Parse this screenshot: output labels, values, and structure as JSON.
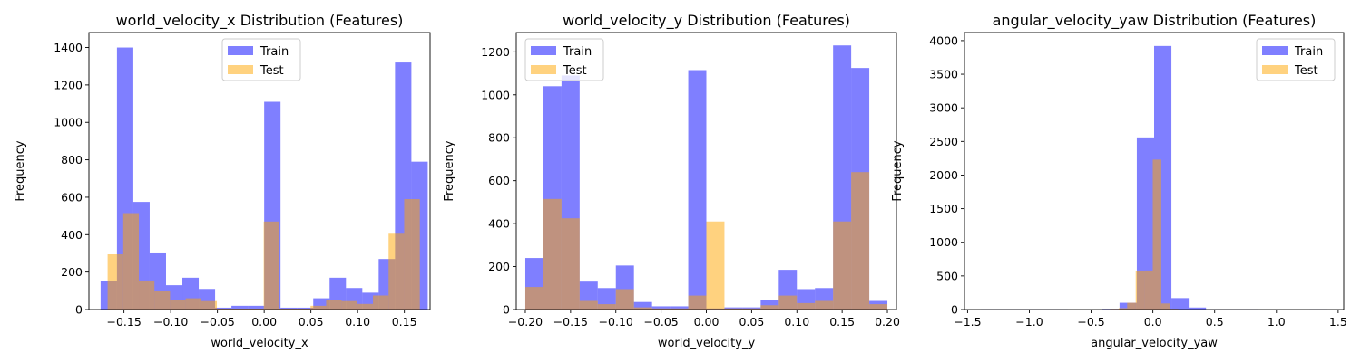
{
  "chart_data": [
    {
      "type": "histogram",
      "title": "world_velocity_x Distribution (Features)",
      "xlabel": "world_velocity_x",
      "ylabel": "Frequency",
      "xlim": [
        -0.1875,
        0.1775
      ],
      "ylim": [
        0,
        1480
      ],
      "xticks": [
        -0.15,
        -0.1,
        -0.05,
        0.0,
        0.05,
        0.1,
        0.15
      ],
      "xtick_labels": [
        "−0.15",
        "−0.10",
        "−0.05",
        "0.00",
        "0.05",
        "0.10",
        "0.15"
      ],
      "yticks": [
        0,
        200,
        400,
        600,
        800,
        1000,
        1200,
        1400
      ],
      "ytick_labels": [
        "0",
        "200",
        "400",
        "600",
        "800",
        "1000",
        "1200",
        "1400"
      ],
      "legend": {
        "position": "upper center",
        "entries": [
          "Train",
          "Test"
        ]
      },
      "series": [
        {
          "name": "Train",
          "color": "#0000ff",
          "alpha": 0.5,
          "bin_edges": [
            -0.175,
            -0.1575,
            -0.14,
            -0.1225,
            -0.105,
            -0.0875,
            -0.07,
            -0.0525,
            -0.035,
            -0.0175,
            0.0,
            0.0175,
            0.035,
            0.0525,
            0.07,
            0.0875,
            0.105,
            0.1225,
            0.14,
            0.1575,
            0.175
          ],
          "counts": [
            150,
            1400,
            575,
            300,
            130,
            170,
            110,
            10,
            20,
            20,
            1110,
            10,
            10,
            60,
            170,
            115,
            90,
            270,
            1320,
            790
          ]
        },
        {
          "name": "Test",
          "color": "#ffa500",
          "alpha": 0.5,
          "bin_edges": [
            -0.1675,
            -0.1508,
            -0.1341,
            -0.1174,
            -0.1007,
            -0.084,
            -0.0673,
            -0.0506,
            -0.0339,
            -0.0172,
            -0.0005,
            0.0162,
            0.0329,
            0.0496,
            0.0663,
            0.083,
            0.0997,
            0.1164,
            0.1331,
            0.1498,
            0.1665
          ],
          "counts": [
            295,
            515,
            155,
            100,
            50,
            60,
            45,
            5,
            5,
            5,
            470,
            5,
            5,
            20,
            50,
            45,
            30,
            75,
            405,
            590
          ]
        }
      ]
    },
    {
      "type": "histogram",
      "title": "world_velocity_y Distribution (Features)",
      "xlabel": "world_velocity_y",
      "ylabel": "Frequency",
      "xlim": [
        -0.21,
        0.21
      ],
      "ylim": [
        0,
        1290
      ],
      "xticks": [
        -0.2,
        -0.15,
        -0.1,
        -0.05,
        0.0,
        0.05,
        0.1,
        0.15,
        0.2
      ],
      "xtick_labels": [
        "−0.20",
        "−0.15",
        "−0.10",
        "−0.05",
        "0.00",
        "0.05",
        "0.10",
        "0.15",
        "0.20"
      ],
      "yticks": [
        0,
        200,
        400,
        600,
        800,
        1000,
        1200
      ],
      "ytick_labels": [
        "0",
        "200",
        "400",
        "600",
        "800",
        "1000",
        "1200"
      ],
      "legend": {
        "position": "upper left",
        "entries": [
          "Train",
          "Test"
        ]
      },
      "series": [
        {
          "name": "Train",
          "color": "#0000ff",
          "alpha": 0.5,
          "bin_edges": [
            -0.2,
            -0.18,
            -0.16,
            -0.14,
            -0.12,
            -0.1,
            -0.08,
            -0.06,
            -0.04,
            -0.02,
            0.0,
            0.02,
            0.04,
            0.06,
            0.08,
            0.1,
            0.12,
            0.14,
            0.16,
            0.18,
            0.2
          ],
          "counts": [
            240,
            1040,
            1090,
            130,
            100,
            205,
            35,
            15,
            15,
            1115,
            5,
            10,
            10,
            45,
            185,
            95,
            100,
            1230,
            1125,
            40
          ]
        },
        {
          "name": "Test",
          "color": "#ffa500",
          "alpha": 0.5,
          "bin_edges": [
            -0.2,
            -0.18,
            -0.16,
            -0.14,
            -0.12,
            -0.1,
            -0.08,
            -0.06,
            -0.04,
            -0.02,
            0.0,
            0.02,
            0.04,
            0.06,
            0.08,
            0.1,
            0.12,
            0.14,
            0.16,
            0.18,
            0.2
          ],
          "counts": [
            105,
            515,
            425,
            40,
            25,
            95,
            10,
            5,
            5,
            65,
            410,
            5,
            5,
            20,
            65,
            30,
            40,
            410,
            640,
            25
          ]
        }
      ]
    },
    {
      "type": "histogram",
      "title": "angular_velocity_yaw Distribution (Features)",
      "xlabel": "angular_velocity_yaw",
      "ylabel": "Frequency",
      "xlim": [
        -1.525,
        1.545
      ],
      "ylim": [
        0,
        4120
      ],
      "xticks": [
        -1.5,
        -1.0,
        -0.5,
        0.0,
        0.5,
        1.0,
        1.5
      ],
      "xtick_labels": [
        "−1.5",
        "−1.0",
        "−0.5",
        "0.0",
        "0.5",
        "1.0",
        "1.5"
      ],
      "yticks": [
        0,
        500,
        1000,
        1500,
        2000,
        2500,
        3000,
        3500,
        4000
      ],
      "ytick_labels": [
        "0",
        "500",
        "1000",
        "1500",
        "2000",
        "2500",
        "3000",
        "3500",
        "4000"
      ],
      "legend": {
        "position": "upper right",
        "entries": [
          "Train",
          "Test"
        ]
      },
      "series": [
        {
          "name": "Train",
          "color": "#0000ff",
          "alpha": 0.5,
          "bin_edges": [
            -1.39,
            -1.25,
            -1.11,
            -0.97,
            -0.83,
            -0.69,
            -0.55,
            -0.41,
            -0.27,
            -0.13,
            0.01,
            0.15,
            0.29,
            0.43,
            0.57,
            0.71,
            0.85,
            0.99,
            1.13,
            1.27,
            1.41
          ],
          "counts": [
            5,
            5,
            5,
            5,
            5,
            0,
            0,
            10,
            100,
            2560,
            3920,
            170,
            30,
            5,
            5,
            5,
            0,
            0,
            0,
            5
          ]
        },
        {
          "name": "Test",
          "color": "#ffa500",
          "alpha": 0.5,
          "bin_edges": [
            -0.415,
            -0.346,
            -0.277,
            -0.208,
            -0.139,
            -0.07,
            -0.001,
            0.068,
            0.137,
            0.206
          ],
          "counts": [
            5,
            10,
            20,
            100,
            570,
            580,
            2230,
            90,
            10
          ]
        }
      ]
    }
  ]
}
